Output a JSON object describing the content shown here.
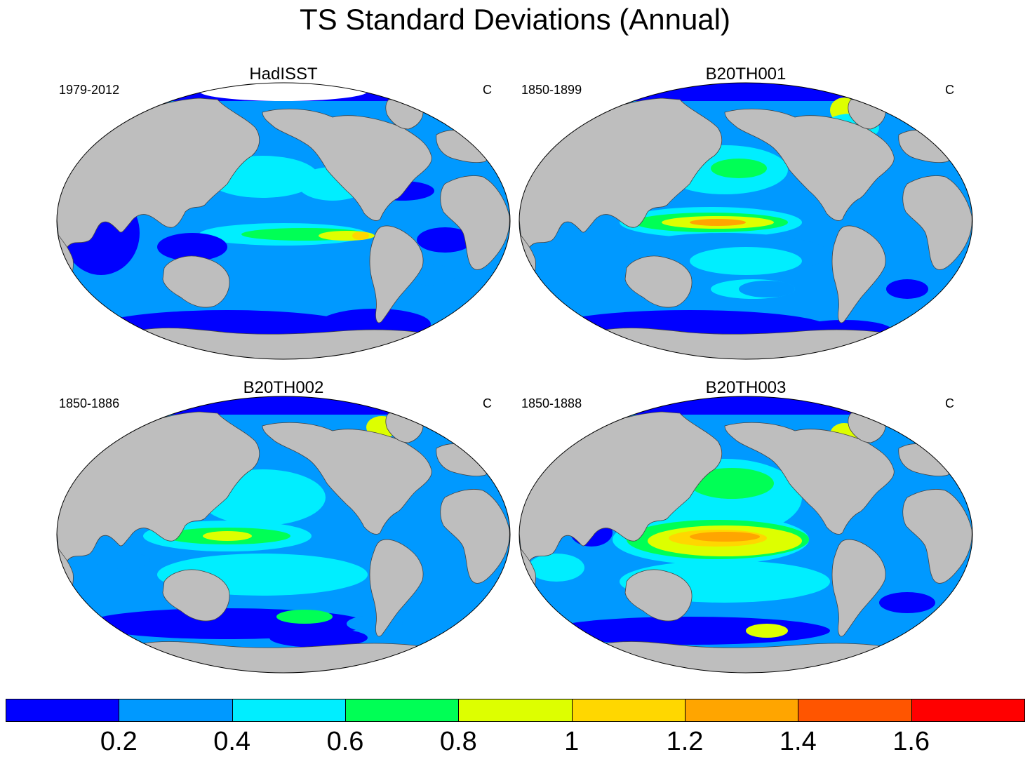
{
  "title": "TS Standard Deviations (Annual)",
  "colors": {
    "land": "#bebebe",
    "missing": "#ffffff",
    "levels": [
      "#0000ff",
      "#0099ff",
      "#00eeff",
      "#00ff55",
      "#ddff00",
      "#ffd700",
      "#ffa500",
      "#ff5500",
      "#ff0000"
    ]
  },
  "panels": [
    {
      "title": "HadISST",
      "left": "1979-2012",
      "right": "C"
    },
    {
      "title": "B20TH001",
      "left": "1850-1899",
      "right": "C"
    },
    {
      "title": "B20TH002",
      "left": "1850-1886",
      "right": "C"
    },
    {
      "title": "B20TH003",
      "left": "1850-1888",
      "right": "C"
    }
  ],
  "colorbar": {
    "labels": [
      "0.2",
      "0.4",
      "0.6",
      "0.8",
      "1",
      "1.2",
      "1.4",
      "1.6"
    ]
  }
}
